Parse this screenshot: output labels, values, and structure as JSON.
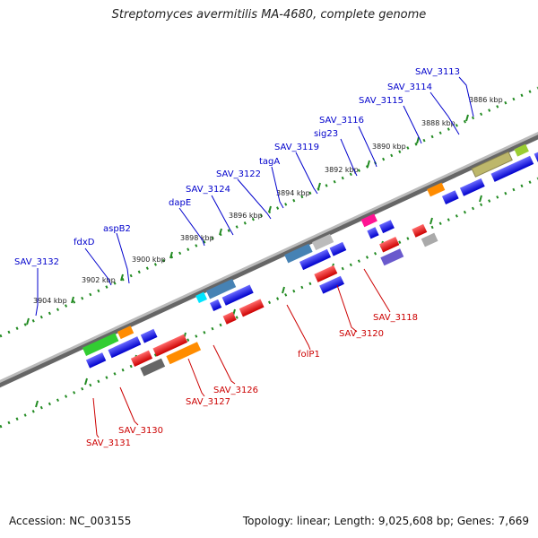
{
  "title": "Streptomyces avermitilis MA-4680, complete genome",
  "footer": {
    "accession": "Accession: NC_003155",
    "topology": "Topology: linear; Length: 9,025,608 bp; Genes: 7,669"
  },
  "ticks": [
    {
      "label": "3886 kbp"
    },
    {
      "label": "3888 kbp"
    },
    {
      "label": "3890 kbp"
    },
    {
      "label": "3892 kbp"
    },
    {
      "label": "3894 kbp"
    },
    {
      "label": "3896 kbp"
    },
    {
      "label": "3898 kbp"
    },
    {
      "label": "3900 kbp"
    },
    {
      "label": "3902 kbp"
    },
    {
      "label": "3904 kbp"
    }
  ],
  "upper_labels": [
    "SAV_3113",
    "SAV_3114",
    "SAV_3115",
    "SAV_3116",
    "sig23",
    "SAV_3119",
    "tagA",
    "SAV_3122",
    "SAV_3124",
    "dapE",
    "aspB2",
    "fdxD",
    "SAV_3132"
  ],
  "lower_labels": [
    "SAV_3118",
    "SAV_3120",
    "folP1",
    "SAV_3126",
    "SAV_3127",
    "SAV_3130",
    "SAV_3131"
  ],
  "colors": {
    "forward_label": "#0000cc",
    "reverse_label": "#cc0000",
    "backbone": "#999999",
    "tick": "#228b22"
  }
}
